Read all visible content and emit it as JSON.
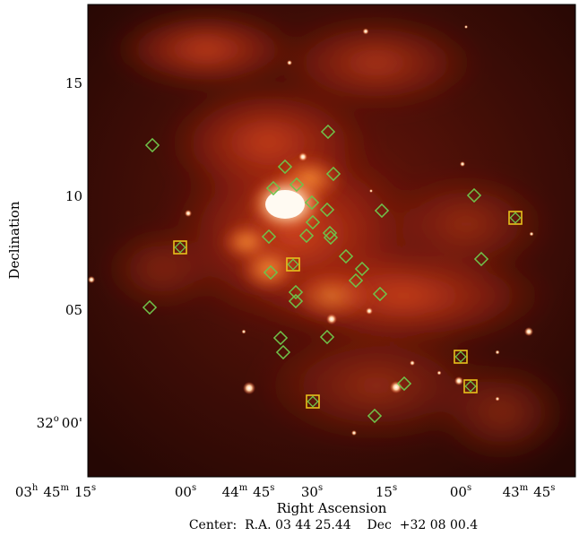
{
  "figure": {
    "xlabel": "Right Ascension",
    "ylabel": "Declination",
    "center_caption": "Center:  R.A. 03 44 25.44    Dec  +32 08 00.4",
    "y_ticks": [
      {
        "text": "15"
      },
      {
        "text": "10"
      },
      {
        "text": "05"
      },
      {
        "text": "00'",
        "prefix": "32",
        "deg": "o"
      }
    ],
    "x_ticks": [
      {
        "main": "03",
        "sup": "h",
        "main2": "45",
        "sup2": "m",
        "main3": "15",
        "sup3": "s"
      },
      {
        "main": "00",
        "sup": "s"
      },
      {
        "main": "44",
        "sup": "m",
        "main2": "45",
        "sup2": "s"
      },
      {
        "main": "30",
        "sup": "s"
      },
      {
        "main": "15",
        "sup": "s"
      },
      {
        "main": "00",
        "sup": "s"
      },
      {
        "main": "43",
        "sup": "m",
        "main2": "45",
        "sup2": "s"
      }
    ],
    "colors": {
      "background": "#3a0b05",
      "nebula": "#c8301a",
      "bright_core": "#fff1e0",
      "green_marker": "#6fc24a",
      "yellow_marker": "#e8c21c"
    }
  }
}
